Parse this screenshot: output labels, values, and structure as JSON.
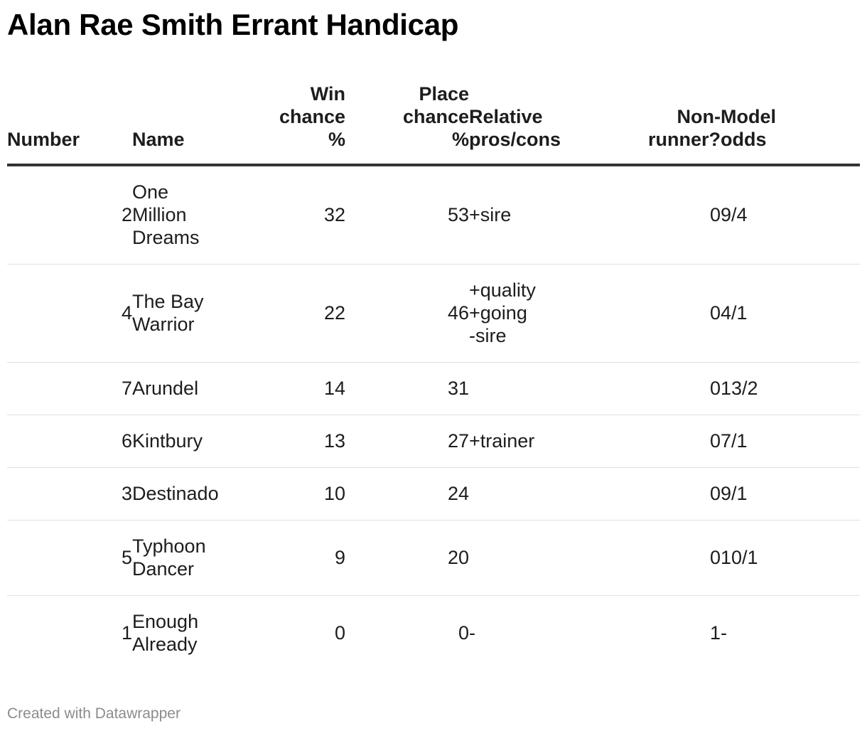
{
  "chart_data": {
    "type": "table",
    "title": "Alan Rae Smith Errant Handicap",
    "columns": [
      "Number",
      "Name",
      "Win chance %",
      "Place chance %",
      "Relative pros/cons",
      "Non-runner?",
      "Model odds"
    ],
    "header": {
      "number": "Number",
      "name": "Name",
      "win": "Win\nchance\n%",
      "place": "Place\nchance\n%",
      "relative": "Relative\npros/cons",
      "nonrunner": "Non-\nrunner?",
      "odds": "Model\nodds"
    },
    "rows": [
      {
        "number": 2,
        "name": "One\nMillion\nDreams",
        "win": 32,
        "place": 53,
        "relative": "+sire",
        "nonrunner": 0,
        "odds": "9/4"
      },
      {
        "number": 4,
        "name": "The Bay\nWarrior",
        "win": 22,
        "place": 46,
        "relative": "+quality\n+going\n-sire",
        "nonrunner": 0,
        "odds": "4/1"
      },
      {
        "number": 7,
        "name": "Arundel",
        "win": 14,
        "place": 31,
        "relative": "",
        "nonrunner": 0,
        "odds": "13/2"
      },
      {
        "number": 6,
        "name": "Kintbury",
        "win": 13,
        "place": 27,
        "relative": "+trainer",
        "nonrunner": 0,
        "odds": "7/1"
      },
      {
        "number": 3,
        "name": "Destinado",
        "win": 10,
        "place": 24,
        "relative": "",
        "nonrunner": 0,
        "odds": "9/1"
      },
      {
        "number": 5,
        "name": "Typhoon\nDancer",
        "win": 9,
        "place": 20,
        "relative": "",
        "nonrunner": 0,
        "odds": "10/1"
      },
      {
        "number": 1,
        "name": "Enough\nAlready",
        "win": 0,
        "place": 0,
        "relative": "-",
        "nonrunner": 1,
        "odds": "-"
      }
    ]
  },
  "footer": {
    "credit": "Created with Datawrapper"
  },
  "colors": {
    "text": "#1d1d1d",
    "header_rule": "#333333",
    "row_rule": "#e0e0e0",
    "footer_text": "#8c8c8c"
  }
}
